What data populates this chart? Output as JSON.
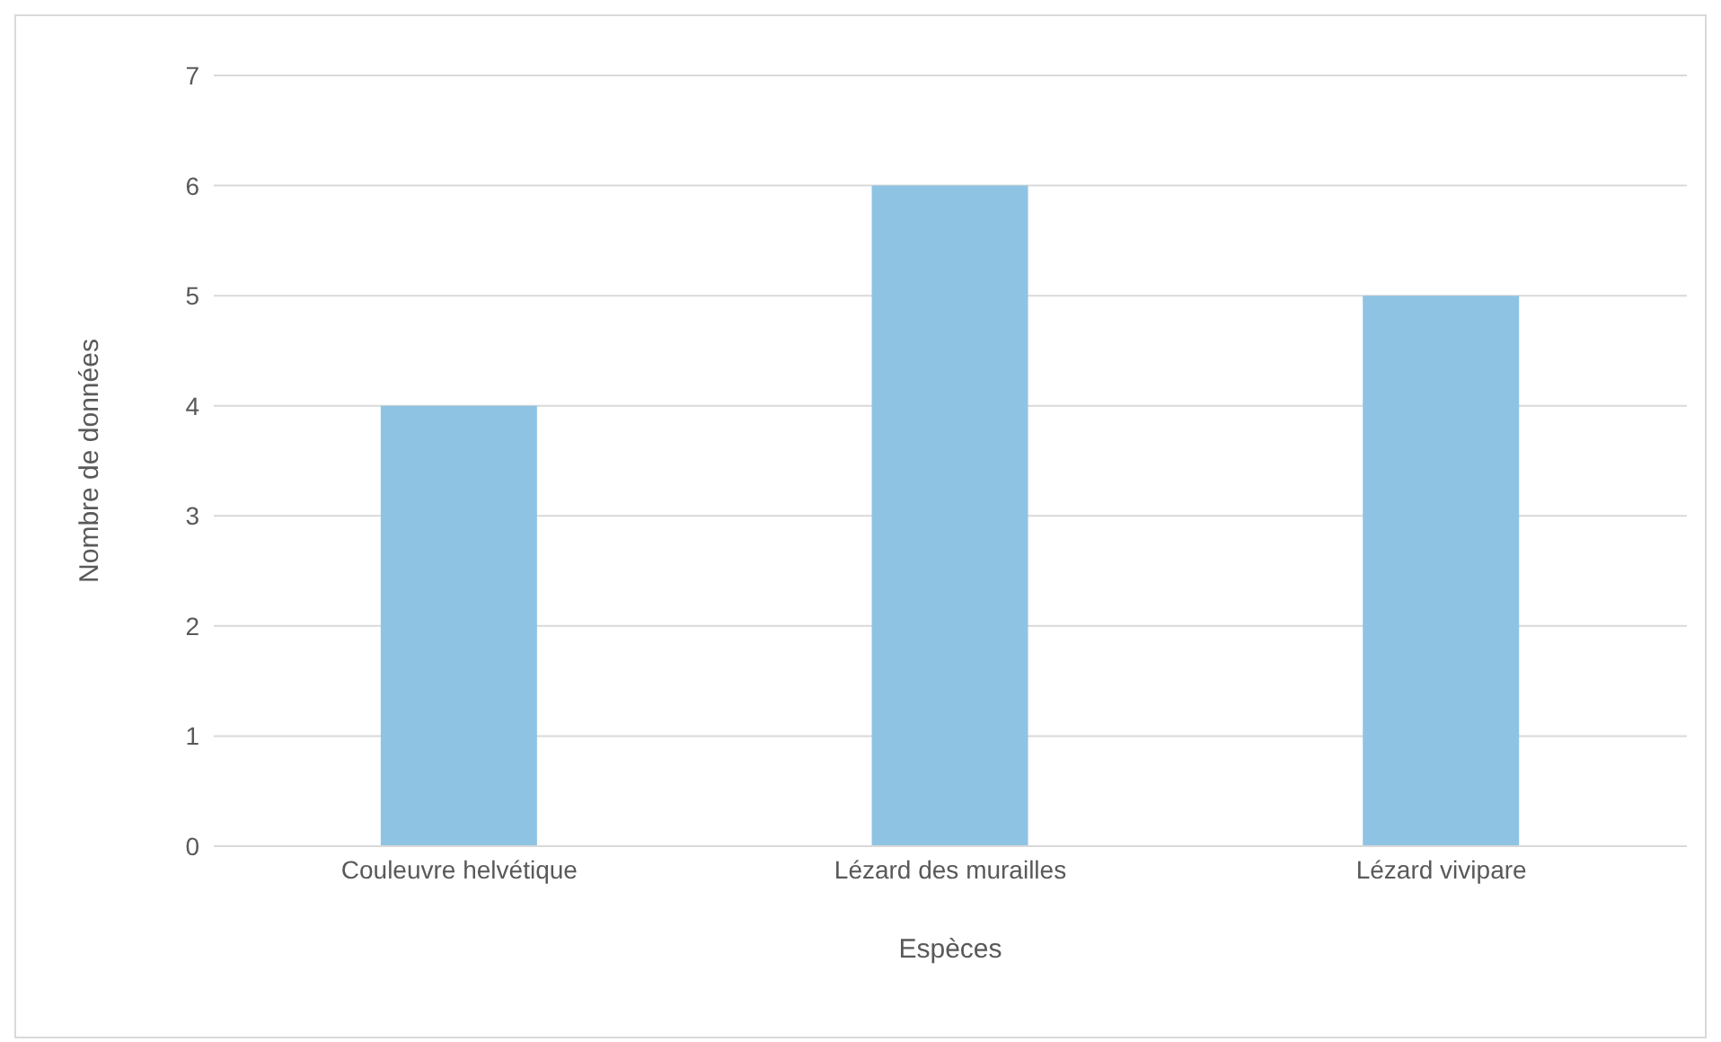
{
  "chart_data": {
    "type": "bar",
    "xlabel": "Espèces",
    "ylabel": "Nombre de données",
    "categories": [
      "Couleuvre helvétique",
      "Lézard des murailles",
      "Lézard vivipare"
    ],
    "values": [
      4,
      6,
      5
    ],
    "color": "#8fc3e3",
    "ylim": [
      0,
      7
    ],
    "yticks": [
      0,
      1,
      2,
      3,
      4,
      5,
      6,
      7
    ],
    "grid": "y",
    "legend": false
  }
}
